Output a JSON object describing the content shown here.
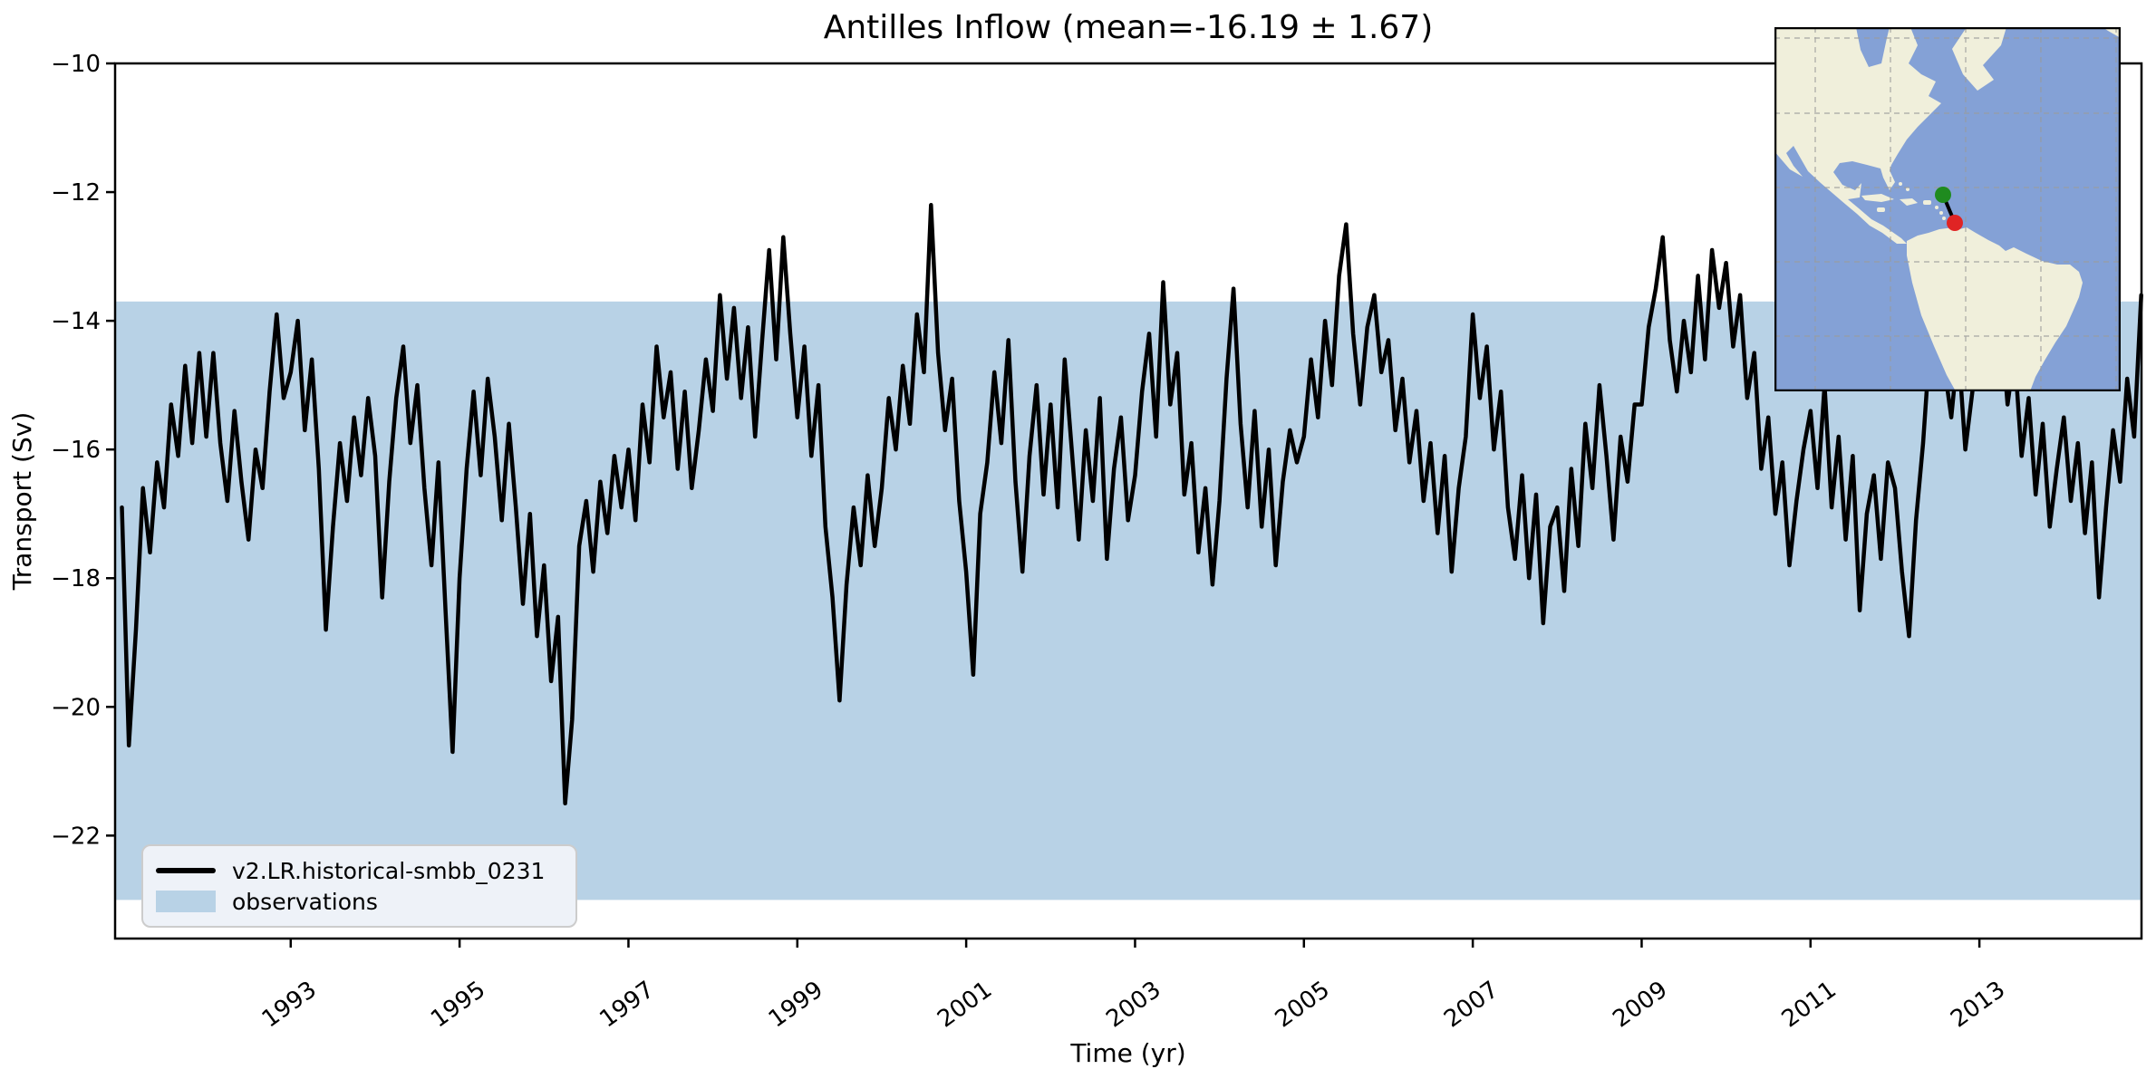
{
  "figure": {
    "title": "Antilles Inflow (mean=-16.19 ± 1.67)"
  },
  "legend": {
    "entries": [
      {
        "label": "v2.LR.historical-smbb_0231",
        "sample": "line",
        "color": "#000000"
      },
      {
        "label": "observations",
        "sample": "patch",
        "color": "#b8d2e6"
      }
    ]
  },
  "chart_data": {
    "type": "line",
    "title": "Antilles Inflow (mean=-16.19 ± 1.67)",
    "xlabel": "Time (yr)",
    "ylabel": "Transport (Sv)",
    "xlim": [
      1990.92,
      2014.92
    ],
    "ylim": [
      -23.6,
      -10
    ],
    "grid": false,
    "legend_position": "lower left",
    "x_tick_years": [
      1993,
      1995,
      1997,
      1999,
      2001,
      2003,
      2005,
      2007,
      2009,
      2011,
      2013
    ],
    "y_ticks": [
      -10,
      -12,
      -14,
      -16,
      -18,
      -20,
      -22
    ],
    "mean": -16.19,
    "std": 1.67,
    "observations_band": {
      "min": -23.0,
      "max": -13.7,
      "color": "#b8d2e6",
      "label": "observations"
    },
    "series": [
      {
        "name": "v2.LR.historical-smbb_0231",
        "color": "#000000",
        "x_start": 1991.0,
        "x_step_years": 0.0833333,
        "values": [
          -16.9,
          -20.6,
          -18.8,
          -16.6,
          -17.6,
          -16.2,
          -16.9,
          -15.3,
          -16.1,
          -14.7,
          -15.9,
          -14.5,
          -15.8,
          -14.5,
          -15.9,
          -16.8,
          -15.4,
          -16.5,
          -17.4,
          -16.0,
          -16.6,
          -15.1,
          -13.9,
          -15.2,
          -14.8,
          -14.0,
          -15.7,
          -14.6,
          -16.3,
          -18.8,
          -17.2,
          -15.9,
          -16.8,
          -15.5,
          -16.4,
          -15.2,
          -16.1,
          -18.3,
          -16.5,
          -15.2,
          -14.4,
          -15.9,
          -15.0,
          -16.6,
          -17.8,
          -16.2,
          -18.5,
          -20.7,
          -18.0,
          -16.3,
          -15.1,
          -16.4,
          -14.9,
          -15.8,
          -17.1,
          -15.6,
          -16.9,
          -18.4,
          -17.0,
          -18.9,
          -17.8,
          -19.6,
          -18.6,
          -21.5,
          -20.2,
          -17.5,
          -16.8,
          -17.9,
          -16.5,
          -17.3,
          -16.1,
          -16.9,
          -16.0,
          -17.1,
          -15.3,
          -16.2,
          -14.4,
          -15.5,
          -14.8,
          -16.3,
          -15.1,
          -16.6,
          -15.7,
          -14.6,
          -15.4,
          -13.6,
          -14.9,
          -13.8,
          -15.2,
          -14.1,
          -15.8,
          -14.3,
          -12.9,
          -14.6,
          -12.7,
          -14.2,
          -15.5,
          -14.4,
          -16.1,
          -15.0,
          -17.2,
          -18.3,
          -19.9,
          -18.1,
          -16.9,
          -17.8,
          -16.4,
          -17.5,
          -16.6,
          -15.2,
          -16.0,
          -14.7,
          -15.6,
          -13.9,
          -14.8,
          -12.2,
          -14.5,
          -15.7,
          -14.9,
          -16.8,
          -17.9,
          -19.5,
          -17.0,
          -16.2,
          -14.8,
          -15.9,
          -14.3,
          -16.5,
          -17.9,
          -16.1,
          -15.0,
          -16.7,
          -15.3,
          -16.9,
          -14.6,
          -16.0,
          -17.4,
          -15.7,
          -16.8,
          -15.2,
          -17.7,
          -16.3,
          -15.5,
          -17.1,
          -16.4,
          -15.1,
          -14.2,
          -15.8,
          -13.4,
          -15.3,
          -14.5,
          -16.7,
          -15.9,
          -17.6,
          -16.6,
          -18.1,
          -16.8,
          -14.9,
          -13.5,
          -15.6,
          -16.9,
          -15.4,
          -17.2,
          -16.0,
          -17.8,
          -16.5,
          -15.7,
          -16.2,
          -15.8,
          -14.6,
          -15.5,
          -14.0,
          -15.0,
          -13.3,
          -12.5,
          -14.2,
          -15.3,
          -14.1,
          -13.6,
          -14.8,
          -14.3,
          -15.7,
          -14.9,
          -16.2,
          -15.4,
          -16.8,
          -15.9,
          -17.3,
          -16.1,
          -17.9,
          -16.6,
          -15.8,
          -13.9,
          -15.2,
          -14.4,
          -16.0,
          -15.1,
          -16.9,
          -17.7,
          -16.4,
          -18.0,
          -16.7,
          -18.7,
          -17.2,
          -16.9,
          -18.2,
          -16.3,
          -17.5,
          -15.6,
          -16.6,
          -15.0,
          -16.1,
          -17.4,
          -15.8,
          -16.5,
          -15.3,
          -15.3,
          -14.1,
          -13.5,
          -12.7,
          -14.3,
          -15.1,
          -14.0,
          -14.8,
          -13.3,
          -14.6,
          -12.9,
          -13.8,
          -13.1,
          -14.4,
          -13.6,
          -15.2,
          -14.5,
          -16.3,
          -15.5,
          -17.0,
          -16.2,
          -17.8,
          -16.8,
          -16.0,
          -15.4,
          -16.6,
          -15.0,
          -16.9,
          -15.8,
          -17.4,
          -16.1,
          -18.5,
          -17.0,
          -16.4,
          -17.7,
          -16.2,
          -16.6,
          -17.9,
          -18.9,
          -17.1,
          -15.9,
          -14.3,
          -12.6,
          -14.7,
          -15.5,
          -14.4,
          -16.0,
          -15.1,
          -14.2,
          -13.3,
          -14.8,
          -13.9,
          -15.3,
          -14.5,
          -16.1,
          -15.2,
          -16.7,
          -15.6,
          -17.2,
          -16.3,
          -15.5,
          -16.8,
          -15.9,
          -17.3,
          -16.2,
          -18.3,
          -16.9,
          -15.7,
          -16.5,
          -14.9,
          -15.8,
          -13.6
        ]
      }
    ],
    "inset_map": {
      "region": "Americas / Caribbean",
      "ocean_color": "#84a1d6",
      "land_color": "#f0efdb",
      "grid_color": "#9a9a9a",
      "markers": [
        {
          "name": "section-north-endpoint",
          "color": "#1f8b1f"
        },
        {
          "name": "section-south-endpoint",
          "color": "#e02424"
        }
      ]
    }
  }
}
